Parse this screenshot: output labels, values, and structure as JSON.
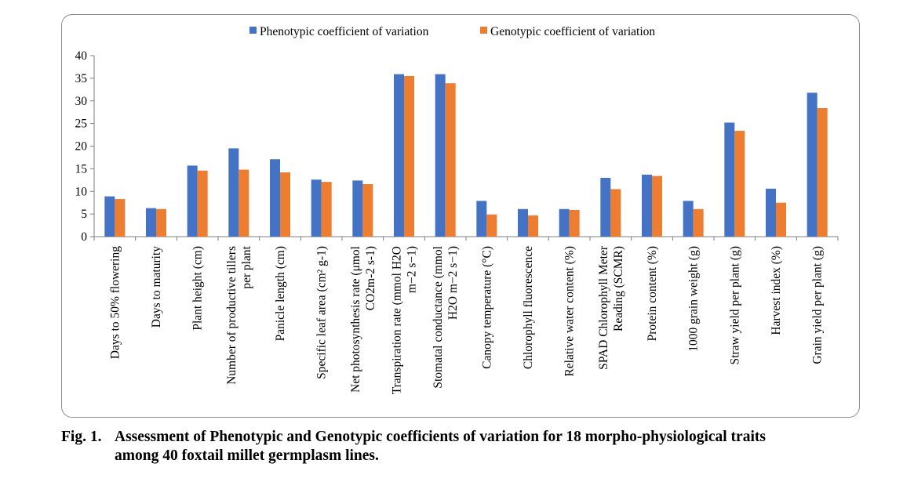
{
  "chart_data": {
    "type": "bar",
    "title": "",
    "xlabel": "",
    "ylabel": "",
    "ylim": [
      0,
      40
    ],
    "yticks": [
      0,
      5,
      10,
      15,
      20,
      25,
      30,
      35,
      40
    ],
    "legend_position": "top",
    "grid": false,
    "categories": [
      [
        "Days to 50% flowering"
      ],
      [
        "Days to maturity"
      ],
      [
        "Plant height (cm)"
      ],
      [
        "Number of productive tillers",
        "per plant"
      ],
      [
        "Panicle length (cm)"
      ],
      [
        "Specific leaf area (cm² g-1)"
      ],
      [
        "Net photosynthesis rate (μmol",
        "CO2m-2 s-1)"
      ],
      [
        "Transpiration rate (mmol H2O",
        "m−2 s−1)"
      ],
      [
        "Stomatal conductance (mmol",
        "H2O m−2 s−1)"
      ],
      [
        "Canopy temperature (°C)"
      ],
      [
        "Chlorophyll fluorescence"
      ],
      [
        "Relative water content (%)"
      ],
      [
        "SPAD Chlorophyll Meter",
        "Reading (SCMR)"
      ],
      [
        "Protein content (%)"
      ],
      [
        "1000 grain weight (g)"
      ],
      [
        "Straw yield per plant (g)"
      ],
      [
        "Harvest index (%)"
      ],
      [
        "Grain yield per plant (g)"
      ]
    ],
    "series": [
      {
        "name": "Phenotypic coefficient of variation",
        "color": "#4472C4",
        "values": [
          8.9,
          6.3,
          15.7,
          19.5,
          17.1,
          12.6,
          12.4,
          35.9,
          35.9,
          7.9,
          6.1,
          6.1,
          13.0,
          13.7,
          7.9,
          25.2,
          10.6,
          31.8
        ]
      },
      {
        "name": "Genotypic coefficient of variation",
        "color": "#ED7D31",
        "values": [
          8.3,
          6.1,
          14.6,
          14.8,
          14.2,
          12.1,
          11.6,
          35.5,
          33.9,
          4.9,
          4.7,
          5.9,
          10.5,
          13.4,
          6.1,
          23.4,
          7.5,
          28.4
        ]
      }
    ]
  },
  "caption": {
    "label": "Fig. 1.",
    "line1": "Assessment of Phenotypic and Genotypic coefficients of variation for 18 morpho-physiological traits",
    "line2": "among 40 foxtail millet germplasm lines."
  }
}
